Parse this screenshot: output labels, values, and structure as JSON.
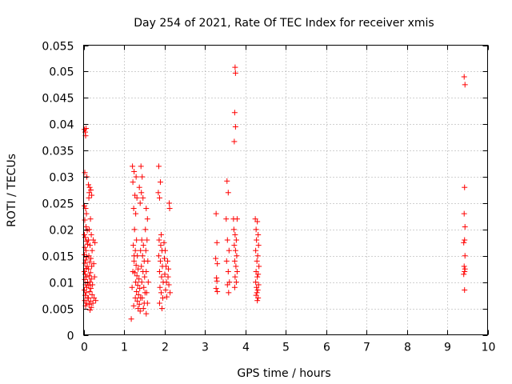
{
  "chart_data": {
    "type": "scatter",
    "title": "Day 254 of 2021, Rate Of TEC Index for receiver xmis",
    "xlabel": "GPS time / hours",
    "ylabel": "ROTI / TECUs",
    "xlim": [
      0,
      10
    ],
    "ylim": [
      0,
      0.055
    ],
    "x_ticks": [
      "0",
      "1",
      "2",
      "3",
      "4",
      "5",
      "6",
      "7",
      "8",
      "9",
      "10"
    ],
    "y_ticks": [
      "0",
      "0.005",
      "0.01",
      "0.015",
      "0.02",
      "0.025",
      "0.03",
      "0.035",
      "0.04",
      "0.045",
      "0.05",
      "0.055"
    ],
    "grid": true,
    "marker": "+",
    "color": "#ff0000",
    "series": [
      {
        "points": [
          [
            0.02,
            0.039
          ],
          [
            0.04,
            0.0385
          ],
          [
            0.06,
            0.0392
          ],
          [
            0.05,
            0.0378
          ],
          [
            0.03,
            0.0308
          ],
          [
            0.08,
            0.03
          ],
          [
            0.02,
            0.0245
          ],
          [
            0.05,
            0.024
          ],
          [
            0.07,
            0.023
          ],
          [
            0.03,
            0.0218
          ],
          [
            0.06,
            0.0205
          ],
          [
            0.09,
            0.0198
          ],
          [
            0.02,
            0.019
          ],
          [
            0.04,
            0.0185
          ],
          [
            0.07,
            0.0178
          ],
          [
            0.1,
            0.0172
          ],
          [
            0.03,
            0.0166
          ],
          [
            0.06,
            0.016
          ],
          [
            0.02,
            0.0152
          ],
          [
            0.08,
            0.0148
          ],
          [
            0.05,
            0.0142
          ],
          [
            0.03,
            0.0136
          ],
          [
            0.09,
            0.013
          ],
          [
            0.06,
            0.0126
          ],
          [
            0.02,
            0.012
          ],
          [
            0.04,
            0.0115
          ],
          [
            0.07,
            0.011
          ],
          [
            0.03,
            0.0105
          ],
          [
            0.1,
            0.01
          ],
          [
            0.05,
            0.0095
          ],
          [
            0.08,
            0.009
          ],
          [
            0.02,
            0.0085
          ],
          [
            0.06,
            0.008
          ],
          [
            0.04,
            0.0075
          ],
          [
            0.09,
            0.007
          ],
          [
            0.03,
            0.0065
          ],
          [
            0.07,
            0.006
          ],
          [
            0.05,
            0.0055
          ],
          [
            0.12,
            0.0285
          ],
          [
            0.15,
            0.028
          ],
          [
            0.18,
            0.0275
          ],
          [
            0.14,
            0.027
          ],
          [
            0.2,
            0.0265
          ],
          [
            0.13,
            0.026
          ],
          [
            0.17,
            0.022
          ],
          [
            0.14,
            0.02
          ],
          [
            0.19,
            0.019
          ],
          [
            0.12,
            0.018
          ],
          [
            0.16,
            0.017
          ],
          [
            0.21,
            0.016
          ],
          [
            0.13,
            0.015
          ],
          [
            0.18,
            0.0145
          ],
          [
            0.15,
            0.0138
          ],
          [
            0.2,
            0.013
          ],
          [
            0.12,
            0.0125
          ],
          [
            0.17,
            0.0118
          ],
          [
            0.14,
            0.0112
          ],
          [
            0.19,
            0.0106
          ],
          [
            0.16,
            0.01
          ],
          [
            0.13,
            0.0094
          ],
          [
            0.18,
            0.0088
          ],
          [
            0.15,
            0.0082
          ],
          [
            0.21,
            0.0076
          ],
          [
            0.12,
            0.007
          ],
          [
            0.17,
            0.0064
          ],
          [
            0.14,
            0.0058
          ],
          [
            0.19,
            0.0052
          ],
          [
            0.16,
            0.0047
          ],
          [
            0.24,
            0.018
          ],
          [
            0.28,
            0.0175
          ],
          [
            0.25,
            0.0135
          ],
          [
            0.27,
            0.011
          ],
          [
            0.22,
            0.0095
          ],
          [
            0.26,
            0.007
          ],
          [
            0.3,
            0.0065
          ],
          [
            0.23,
            0.006
          ],
          [
            1.18,
            0.003
          ],
          [
            1.22,
            0.012
          ],
          [
            1.25,
            0.015
          ],
          [
            1.2,
            0.009
          ],
          [
            1.28,
            0.007
          ],
          [
            1.24,
            0.0055
          ],
          [
            1.21,
            0.032
          ],
          [
            1.25,
            0.031
          ],
          [
            1.3,
            0.03
          ],
          [
            1.22,
            0.029
          ],
          [
            1.27,
            0.0265
          ],
          [
            1.32,
            0.026
          ],
          [
            1.24,
            0.024
          ],
          [
            1.29,
            0.023
          ],
          [
            1.26,
            0.02
          ],
          [
            1.31,
            0.018
          ],
          [
            1.23,
            0.017
          ],
          [
            1.28,
            0.016
          ],
          [
            1.33,
            0.015
          ],
          [
            1.25,
            0.014
          ],
          [
            1.3,
            0.0132
          ],
          [
            1.35,
            0.0125
          ],
          [
            1.27,
            0.0118
          ],
          [
            1.32,
            0.0112
          ],
          [
            1.37,
            0.0106
          ],
          [
            1.29,
            0.01
          ],
          [
            1.34,
            0.0094
          ],
          [
            1.39,
            0.0088
          ],
          [
            1.31,
            0.0082
          ],
          [
            1.36,
            0.0076
          ],
          [
            1.41,
            0.007
          ],
          [
            1.33,
            0.0064
          ],
          [
            1.38,
            0.0058
          ],
          [
            1.35,
            0.005
          ],
          [
            1.4,
            0.0045
          ],
          [
            1.42,
            0.032
          ],
          [
            1.45,
            0.03
          ],
          [
            1.38,
            0.028
          ],
          [
            1.43,
            0.027
          ],
          [
            1.47,
            0.026
          ],
          [
            1.4,
            0.025
          ],
          [
            1.44,
            0.018
          ],
          [
            1.48,
            0.017
          ],
          [
            1.41,
            0.016
          ],
          [
            1.46,
            0.015
          ],
          [
            1.5,
            0.014
          ],
          [
            1.43,
            0.013
          ],
          [
            1.47,
            0.012
          ],
          [
            1.51,
            0.011
          ],
          [
            1.44,
            0.01
          ],
          [
            1.49,
            0.009
          ],
          [
            1.52,
            0.008
          ],
          [
            1.45,
            0.007
          ],
          [
            1.5,
            0.006
          ],
          [
            1.48,
            0.005
          ],
          [
            1.55,
            0.024
          ],
          [
            1.58,
            0.022
          ],
          [
            1.53,
            0.02
          ],
          [
            1.57,
            0.018
          ],
          [
            1.54,
            0.016
          ],
          [
            1.59,
            0.014
          ],
          [
            1.55,
            0.012
          ],
          [
            1.6,
            0.01
          ],
          [
            1.56,
            0.008
          ],
          [
            1.58,
            0.006
          ],
          [
            1.55,
            0.004
          ],
          [
            1.86,
            0.032
          ],
          [
            1.9,
            0.029
          ],
          [
            1.85,
            0.027
          ],
          [
            1.88,
            0.026
          ],
          [
            1.92,
            0.019
          ],
          [
            1.87,
            0.018
          ],
          [
            1.91,
            0.017
          ],
          [
            1.94,
            0.016
          ],
          [
            1.86,
            0.015
          ],
          [
            1.9,
            0.014
          ],
          [
            1.95,
            0.013
          ],
          [
            1.88,
            0.012
          ],
          [
            1.93,
            0.011
          ],
          [
            1.97,
            0.01
          ],
          [
            1.89,
            0.009
          ],
          [
            1.92,
            0.008
          ],
          [
            1.96,
            0.007
          ],
          [
            1.88,
            0.006
          ],
          [
            1.94,
            0.005
          ],
          [
            1.99,
            0.0175
          ],
          [
            2.02,
            0.016
          ],
          [
            2.0,
            0.0145
          ],
          [
            2.04,
            0.013
          ],
          [
            2.01,
            0.0115
          ],
          [
            2.05,
            0.01
          ],
          [
            2.03,
            0.0085
          ],
          [
            2.06,
            0.0072
          ],
          [
            2.08,
            0.014
          ],
          [
            2.1,
            0.0125
          ],
          [
            2.09,
            0.011
          ],
          [
            2.12,
            0.025
          ],
          [
            2.13,
            0.024
          ],
          [
            2.11,
            0.0095
          ],
          [
            2.14,
            0.008
          ],
          [
            3.28,
            0.023
          ],
          [
            3.3,
            0.0175
          ],
          [
            3.27,
            0.0145
          ],
          [
            3.31,
            0.0135
          ],
          [
            3.29,
            0.0108
          ],
          [
            3.3,
            0.0102
          ],
          [
            3.28,
            0.0088
          ],
          [
            3.31,
            0.0082
          ],
          [
            3.55,
            0.0292
          ],
          [
            3.58,
            0.027
          ],
          [
            3.53,
            0.022
          ],
          [
            3.56,
            0.018
          ],
          [
            3.6,
            0.016
          ],
          [
            3.54,
            0.014
          ],
          [
            3.58,
            0.012
          ],
          [
            3.61,
            0.01
          ],
          [
            3.56,
            0.0095
          ],
          [
            3.59,
            0.008
          ],
          [
            3.71,
            0.022
          ],
          [
            3.75,
            0.0508
          ],
          [
            3.76,
            0.0497
          ],
          [
            3.74,
            0.0422
          ],
          [
            3.76,
            0.0395
          ],
          [
            3.73,
            0.0367
          ],
          [
            3.72,
            0.02
          ],
          [
            3.75,
            0.019
          ],
          [
            3.78,
            0.018
          ],
          [
            3.73,
            0.017
          ],
          [
            3.76,
            0.016
          ],
          [
            3.79,
            0.015
          ],
          [
            3.74,
            0.014
          ],
          [
            3.77,
            0.013
          ],
          [
            3.8,
            0.012
          ],
          [
            3.75,
            0.011
          ],
          [
            3.78,
            0.01
          ],
          [
            3.74,
            0.009
          ],
          [
            3.8,
            0.022
          ],
          [
            4.25,
            0.022
          ],
          [
            4.3,
            0.0215
          ],
          [
            4.27,
            0.02
          ],
          [
            4.32,
            0.019
          ],
          [
            4.28,
            0.018
          ],
          [
            4.33,
            0.017
          ],
          [
            4.26,
            0.016
          ],
          [
            4.31,
            0.015
          ],
          [
            4.29,
            0.014
          ],
          [
            4.34,
            0.013
          ],
          [
            4.27,
            0.012
          ],
          [
            4.32,
            0.0115
          ],
          [
            4.3,
            0.011
          ],
          [
            4.26,
            0.01
          ],
          [
            4.33,
            0.0095
          ],
          [
            4.28,
            0.009
          ],
          [
            4.31,
            0.0085
          ],
          [
            4.29,
            0.008
          ],
          [
            4.27,
            0.0075
          ],
          [
            4.32,
            0.007
          ],
          [
            4.3,
            0.0065
          ],
          [
            9.42,
            0.049
          ],
          [
            9.44,
            0.0475
          ],
          [
            9.43,
            0.028
          ],
          [
            9.42,
            0.023
          ],
          [
            9.44,
            0.0205
          ],
          [
            9.43,
            0.018
          ],
          [
            9.41,
            0.0175
          ],
          [
            9.44,
            0.015
          ],
          [
            9.42,
            0.013
          ],
          [
            9.44,
            0.0125
          ],
          [
            9.43,
            0.012
          ],
          [
            9.41,
            0.0115
          ],
          [
            9.43,
            0.0085
          ]
        ]
      }
    ]
  }
}
